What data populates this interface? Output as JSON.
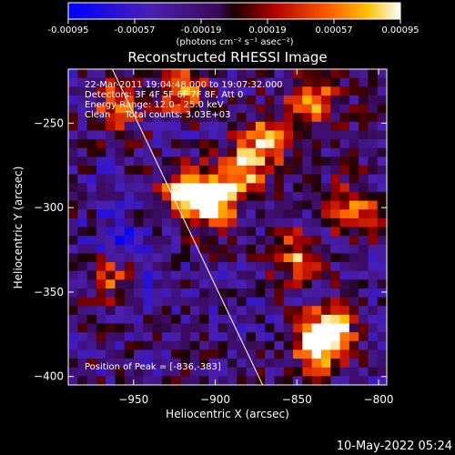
{
  "chart_data": {
    "type": "heatmap",
    "title": "Reconstructed RHESSI Image",
    "xlabel": "Heliocentric X (arcsec)",
    "ylabel": "Heliocentric Y (arcsec)",
    "xlim": [
      -990,
      -795
    ],
    "ylim": [
      -405,
      -218
    ],
    "x_ticks": [
      -950,
      -900,
      -850,
      -800
    ],
    "y_ticks": [
      -250,
      -300,
      -350,
      -400
    ],
    "colorbar": {
      "range": [
        -0.00095,
        0.00095
      ],
      "tick_values": [
        -0.00095,
        -0.00057,
        -0.00019,
        0.00019,
        0.00057,
        0.00095
      ],
      "tick_labels": [
        "-0.00095",
        "-0.00057",
        "-0.00019",
        "0.00019",
        "0.00057",
        "0.00095"
      ],
      "units": "(photons cm⁻² s⁻¹ asec⁻²)"
    },
    "annotations": {
      "time": "22-Mar-2011 19:04:48.000 to 19:07:32.000",
      "detectors": "Detectors: 3F 4F 5F 6F 7F 8F, Att 0",
      "energy": "Energy Range: 12.0 - 25.0 keV",
      "clean": "Clean     Total counts: 3.03E+03",
      "peak": "Position of Peak = [-836,-383]"
    },
    "limb_line": {
      "x": [
        -963,
        -871
      ],
      "y": [
        -218,
        -405
      ]
    },
    "grid_dims": [
      34,
      36
    ],
    "bright_regions": [
      {
        "x": -918,
        "y": -290,
        "value": 0.00095
      },
      {
        "x": -902,
        "y": -298,
        "value": 0.00095
      },
      {
        "x": -885,
        "y": -280,
        "value": 0.0008
      },
      {
        "x": -870,
        "y": -262,
        "value": 0.0007
      },
      {
        "x": -840,
        "y": -238,
        "value": 0.0007
      },
      {
        "x": -836,
        "y": -383,
        "value": 0.00095
      },
      {
        "x": -828,
        "y": -370,
        "value": 0.0008
      },
      {
        "x": -850,
        "y": -330,
        "value": 0.0006
      },
      {
        "x": -815,
        "y": -300,
        "value": 0.0006
      },
      {
        "x": -960,
        "y": -240,
        "value": 0.0005
      },
      {
        "x": -920,
        "y": -230,
        "value": 0.0006
      },
      {
        "x": -965,
        "y": -340,
        "value": 0.0004
      }
    ],
    "dim_regions": [
      {
        "x": -960,
        "y": -320,
        "value": -0.0007
      },
      {
        "x": -940,
        "y": -340,
        "value": -0.0005
      },
      {
        "x": -965,
        "y": -290,
        "value": -0.0004
      },
      {
        "x": -885,
        "y": -372,
        "value": -0.0004
      }
    ]
  },
  "footer": {
    "date": "10-May-2022 05:24"
  }
}
